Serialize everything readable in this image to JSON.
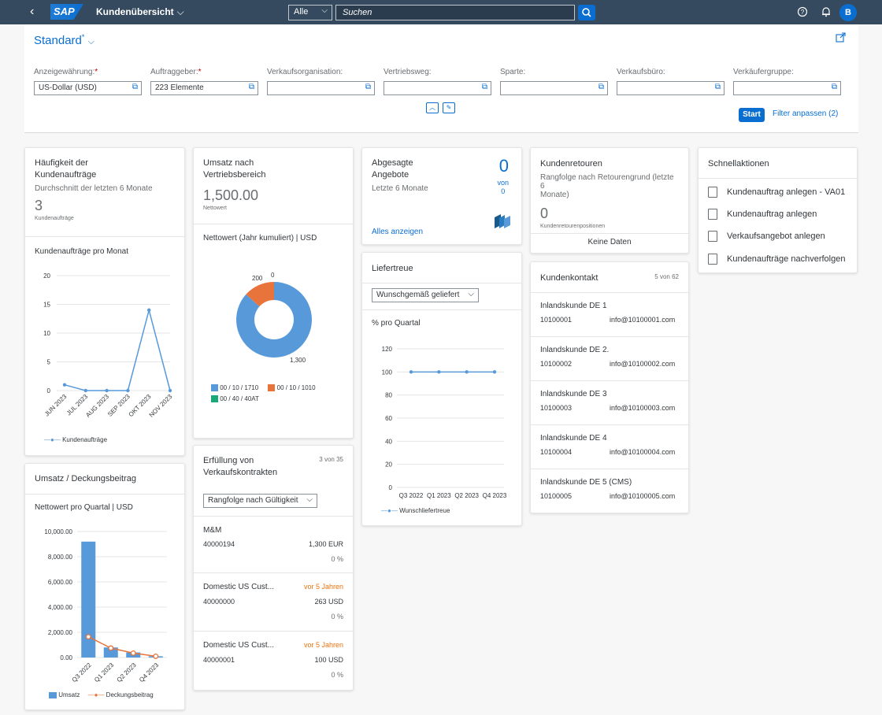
{
  "shell": {
    "title": "Kundenübersicht",
    "scope": "Alle",
    "search_placeholder": "Suchen",
    "avatar": "B",
    "logo": "SAP"
  },
  "header": {
    "variant": "Standard",
    "variant_mark": "*",
    "start": "Start",
    "filter_adjust": "Filter anpassen (2)",
    "filters": [
      {
        "label": "Anzeigewährung:",
        "required": true,
        "value": "US-Dollar (USD)"
      },
      {
        "label": "Auftraggeber:",
        "required": true,
        "value": "223 Elemente"
      },
      {
        "label": "Verkaufsorganisation:",
        "required": false,
        "value": ""
      },
      {
        "label": "Vertriebsweg:",
        "required": false,
        "value": ""
      },
      {
        "label": "Sparte:",
        "required": false,
        "value": ""
      },
      {
        "label": "Verkaufsbüro:",
        "required": false,
        "value": ""
      },
      {
        "label": "Verkäufergruppe:",
        "required": false,
        "value": ""
      }
    ]
  },
  "card1": {
    "title1": "Häufigkeit der",
    "title2": "Kundenaufträge",
    "sub": "Durchschnitt der letzten 6 Monate",
    "kpi": "3",
    "unit": "Kundenaufträge",
    "chart_title": "Kundenaufträge pro Monat",
    "legend": "Kundenaufträge"
  },
  "card2": {
    "title1": "Umsatz nach",
    "title2": "Vertriebsbereich",
    "kpi": "1,500.00",
    "unit": "Nettowert",
    "chart_title": "Nettowert (Jahr kumuliert) | USD",
    "label_200": "200",
    "label_0": "0",
    "label_1300": "1,300",
    "legend": [
      "00 / 10 / 1710",
      "00 / 10 / 1010",
      "00 / 40 / 40AT"
    ]
  },
  "card3": {
    "title1": "Abgesagte",
    "title2": "Angebote",
    "sub": "Letzte 6 Monate",
    "kpi": "0",
    "von": "von",
    "von_val": "0",
    "link": "Alles anzeigen"
  },
  "card4": {
    "title": "Kundenretouren",
    "sub1": "Rangfolge nach Retourengrund (letzte 6",
    "sub2": "Monate)",
    "kpi": "0",
    "unit": "Kundenretourenpositionen",
    "empty": "Keine Daten"
  },
  "card5": {
    "title": "Schnellaktionen",
    "items": [
      "Kundenauftrag anlegen - VA01",
      "Kundenauftrag anlegen",
      "Verkaufsangebot anlegen",
      "Kundenaufträge nachverfolgen"
    ]
  },
  "card6": {
    "title": "Umsatz / Deckungsbeitrag",
    "chart_title": "Nettowert pro Quartal | USD",
    "legend1": "Umsatz",
    "legend2": "Deckungsbeitrag"
  },
  "card7": {
    "title1": "Erfüllung von",
    "title2": "Verkaufskontrakten",
    "count": "3 von 35",
    "select": "Rangfolge nach Gültigkeit",
    "items": [
      {
        "name": "M&M",
        "id": "40000194",
        "value": "1,300 EUR",
        "pct": "0 %",
        "flag": ""
      },
      {
        "name": "Domestic US Cust...",
        "id": "40000000",
        "value": "263 USD",
        "pct": "0 %",
        "flag": "vor 5 Jahren"
      },
      {
        "name": "Domestic US Cust...",
        "id": "40000001",
        "value": "100 USD",
        "pct": "0 %",
        "flag": "vor 5 Jahren"
      }
    ]
  },
  "card8": {
    "title": "Liefertreue",
    "select": "Wunschgemäß geliefert",
    "chart_title": "% pro Quartal",
    "legend": "Wunschliefertreue"
  },
  "card9": {
    "title": "Kundenkontakt",
    "count": "5 von 62",
    "items": [
      {
        "name": "Inlandskunde DE 1",
        "id": "10100001",
        "email": "info@10100001.com"
      },
      {
        "name": "Inlandskunde DE 2.",
        "id": "10100002",
        "email": "info@10100002.com"
      },
      {
        "name": "Inlandskunde DE 3",
        "id": "10100003",
        "email": "info@10100003.com"
      },
      {
        "name": "Inlandskunde DE 4",
        "id": "10100004",
        "email": "info@10100004.com"
      },
      {
        "name": "Inlandskunde DE 5 (CMS)",
        "id": "10100005",
        "email": "info@10100005.com"
      }
    ]
  },
  "colors": {
    "shell": "#354a5f",
    "brand": "#0a6ed1",
    "orange": "#e8743b",
    "teal": "#19a979",
    "blue": "#5899da",
    "negative": "#e9730c"
  },
  "chart_data": [
    {
      "type": "line",
      "title": "Kundenaufträge pro Monat",
      "categories": [
        "JUN 2023",
        "JUL 2023",
        "AUG 2023",
        "SEP 2023",
        "OKT 2023",
        "NOV 2023"
      ],
      "series": [
        {
          "name": "Kundenaufträge",
          "values": [
            1,
            0,
            0,
            0,
            14,
            0
          ]
        }
      ],
      "ylim": [
        0,
        20
      ],
      "yticks": [
        "0",
        "5",
        "10",
        "15",
        "20"
      ]
    },
    {
      "type": "pie",
      "title": "Nettowert (Jahr kumuliert) | USD",
      "categories": [
        "00 / 10 / 1710",
        "00 / 10 / 1010",
        "00 / 40 / 40AT"
      ],
      "values": [
        1300,
        200,
        0
      ]
    },
    {
      "type": "bar",
      "title": "Nettowert pro Quartal | USD",
      "categories": [
        "Q3 2022",
        "Q1 2023",
        "Q2 2023",
        "Q4 2023"
      ],
      "series": [
        {
          "name": "Umsatz",
          "values": [
            9200,
            800,
            400,
            100
          ]
        },
        {
          "name": "Deckungsbeitrag",
          "values": [
            1650,
            750,
            350,
            100
          ]
        }
      ],
      "ylim": [
        0,
        10000
      ],
      "yticks": [
        "0.00",
        "2,000.00",
        "4,000.00",
        "6,000.00",
        "8,000.00",
        "10,000.00"
      ]
    },
    {
      "type": "line",
      "title": "% pro Quartal",
      "categories": [
        "Q3 2022",
        "Q1 2023",
        "Q2 2023",
        "Q4 2023"
      ],
      "series": [
        {
          "name": "Wunschliefertreue",
          "values": [
            100,
            100,
            100,
            100
          ]
        }
      ],
      "ylim": [
        0,
        120
      ],
      "yticks": [
        "0",
        "20",
        "40",
        "60",
        "80",
        "100",
        "120"
      ]
    }
  ]
}
